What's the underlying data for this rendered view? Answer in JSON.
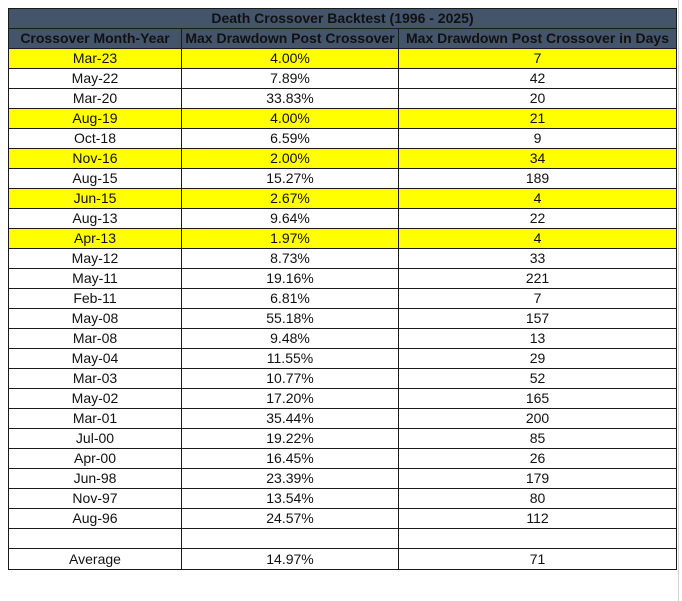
{
  "table": {
    "title": "Death Crossover Backtest (1996 - 2025)",
    "columns": [
      "Crossover Month-Year",
      "Max Drawdown Post Crossover",
      "Max Drawdown Post Crossover in Days"
    ],
    "highlight_color": "#ffff00",
    "header_color": "#44546a",
    "rows": [
      {
        "date": "Mar-23",
        "drawdown": "4.00%",
        "days": "7",
        "highlight": true
      },
      {
        "date": "May-22",
        "drawdown": "7.89%",
        "days": "42",
        "highlight": false
      },
      {
        "date": "Mar-20",
        "drawdown": "33.83%",
        "days": "20",
        "highlight": false
      },
      {
        "date": "Aug-19",
        "drawdown": "4.00%",
        "days": "21",
        "highlight": true
      },
      {
        "date": "Oct-18",
        "drawdown": "6.59%",
        "days": "9",
        "highlight": false
      },
      {
        "date": "Nov-16",
        "drawdown": "2.00%",
        "days": "34",
        "highlight": true
      },
      {
        "date": "Aug-15",
        "drawdown": "15.27%",
        "days": "189",
        "highlight": false
      },
      {
        "date": "Jun-15",
        "drawdown": "2.67%",
        "days": "4",
        "highlight": true
      },
      {
        "date": "Aug-13",
        "drawdown": "9.64%",
        "days": "22",
        "highlight": false
      },
      {
        "date": "Apr-13",
        "drawdown": "1.97%",
        "days": "4",
        "highlight": true
      },
      {
        "date": "May-12",
        "drawdown": "8.73%",
        "days": "33",
        "highlight": false
      },
      {
        "date": "May-11",
        "drawdown": "19.16%",
        "days": "221",
        "highlight": false
      },
      {
        "date": "Feb-11",
        "drawdown": "6.81%",
        "days": "7",
        "highlight": false
      },
      {
        "date": "May-08",
        "drawdown": "55.18%",
        "days": "157",
        "highlight": false
      },
      {
        "date": "Mar-08",
        "drawdown": "9.48%",
        "days": "13",
        "highlight": false
      },
      {
        "date": "May-04",
        "drawdown": "11.55%",
        "days": "29",
        "highlight": false
      },
      {
        "date": "Mar-03",
        "drawdown": "10.77%",
        "days": "52",
        "highlight": false
      },
      {
        "date": "May-02",
        "drawdown": "17.20%",
        "days": "165",
        "highlight": false
      },
      {
        "date": "Mar-01",
        "drawdown": "35.44%",
        "days": "200",
        "highlight": false
      },
      {
        "date": "Jul-00",
        "drawdown": "19.22%",
        "days": "85",
        "highlight": false
      },
      {
        "date": "Apr-00",
        "drawdown": "16.45%",
        "days": "26",
        "highlight": false
      },
      {
        "date": "Jun-98",
        "drawdown": "23.39%",
        "days": "179",
        "highlight": false
      },
      {
        "date": "Nov-97",
        "drawdown": "13.54%",
        "days": "80",
        "highlight": false
      },
      {
        "date": "Aug-96",
        "drawdown": "24.57%",
        "days": "112",
        "highlight": false
      }
    ],
    "average": {
      "label": "Average",
      "drawdown": "14.97%",
      "days": "71"
    }
  }
}
